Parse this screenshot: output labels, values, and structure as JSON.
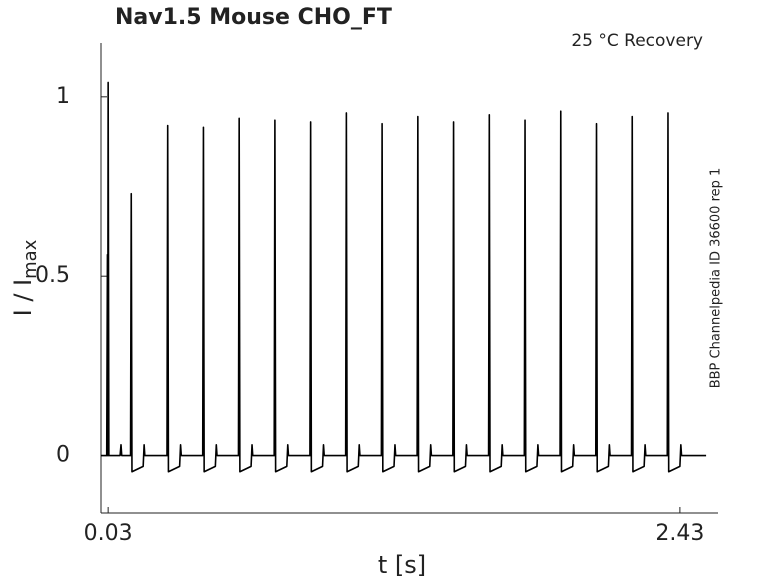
{
  "chart_data": {
    "type": "line",
    "title": "Nav1.5  Mouse  CHO_FT",
    "annotation": "25 °C  Recovery",
    "side_note": "BBP Channelpedia ID 36600 rep 1",
    "xlabel": "t [s]",
    "ylabel": "I / I",
    "ylabel_subscript": "max",
    "color": "#000000",
    "grid": false,
    "xlim": [
      0,
      2.59
    ],
    "xticks": [
      0.03,
      2.43
    ],
    "ylim": [
      -0.16,
      1.15
    ],
    "yticks": [
      0,
      0.5,
      1
    ],
    "x": [
      0,
      0.024,
      0.027,
      0.028,
      0.03,
      0.033,
      0.08,
      0.084,
      0.087,
      0.124,
      0.127,
      0.13,
      0.177,
      0.181,
      0.184,
      0.277,
      0.28,
      0.283,
      0.33,
      0.334,
      0.337,
      0.427,
      0.43,
      0.433,
      0.48,
      0.484,
      0.487,
      0.577,
      0.58,
      0.583,
      0.63,
      0.634,
      0.637,
      0.727,
      0.73,
      0.733,
      0.78,
      0.784,
      0.787,
      0.877,
      0.88,
      0.883,
      0.93,
      0.934,
      0.937,
      1.027,
      1.03,
      1.033,
      1.08,
      1.084,
      1.087,
      1.177,
      1.18,
      1.183,
      1.23,
      1.234,
      1.237,
      1.327,
      1.33,
      1.333,
      1.38,
      1.384,
      1.387,
      1.477,
      1.48,
      1.483,
      1.53,
      1.534,
      1.537,
      1.627,
      1.63,
      1.633,
      1.68,
      1.684,
      1.687,
      1.777,
      1.78,
      1.783,
      1.83,
      1.834,
      1.837,
      1.927,
      1.93,
      1.933,
      1.98,
      1.984,
      1.987,
      2.077,
      2.08,
      2.083,
      2.13,
      2.134,
      2.137,
      2.227,
      2.23,
      2.233,
      2.28,
      2.284,
      2.287,
      2.377,
      2.38,
      2.383,
      2.43,
      2.434,
      2.437,
      2.54
    ],
    "values": [
      0,
      0,
      0.56,
      0,
      1.04,
      0,
      0,
      0.03,
      0,
      0,
      0.73,
      -0.045,
      -0.03,
      0.03,
      0,
      0,
      0.92,
      -0.045,
      -0.03,
      0.03,
      0,
      0,
      0.915,
      -0.045,
      -0.03,
      0.03,
      0,
      0,
      0.94,
      -0.045,
      -0.03,
      0.03,
      0,
      0,
      0.935,
      -0.045,
      -0.03,
      0.03,
      0,
      0,
      0.93,
      -0.045,
      -0.03,
      0.03,
      0,
      0,
      0.955,
      -0.045,
      -0.03,
      0.03,
      0,
      0,
      0.925,
      -0.045,
      -0.03,
      0.03,
      0,
      0,
      0.945,
      -0.045,
      -0.03,
      0.03,
      0,
      0,
      0.93,
      -0.045,
      -0.03,
      0.03,
      0,
      0,
      0.95,
      -0.045,
      -0.03,
      0.03,
      0,
      0,
      0.935,
      -0.045,
      -0.03,
      0.03,
      0,
      0,
      0.96,
      -0.045,
      -0.03,
      0.03,
      0,
      0,
      0.925,
      -0.045,
      -0.03,
      0.03,
      0,
      0,
      0.945,
      -0.045,
      -0.03,
      0.03,
      0,
      0,
      0.955,
      -0.045,
      -0.03,
      0.03,
      0,
      0
    ]
  }
}
